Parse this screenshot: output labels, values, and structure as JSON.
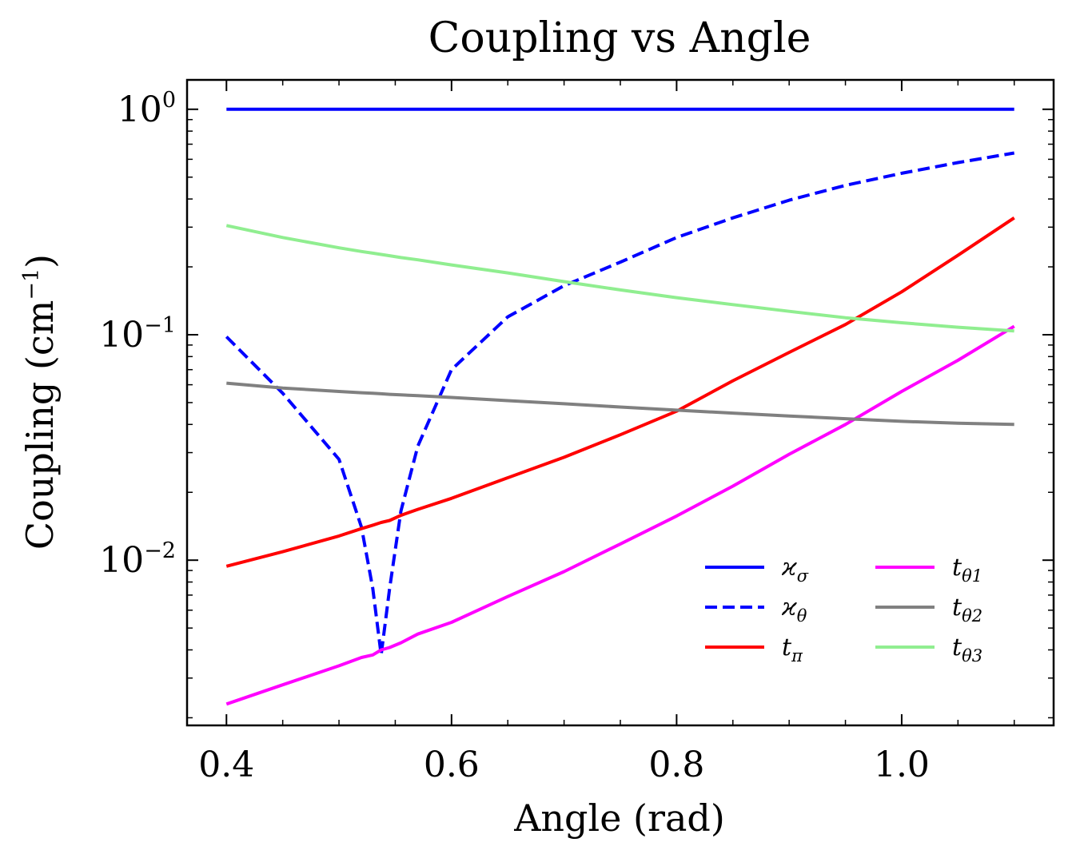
{
  "chart_data": {
    "type": "line",
    "title": "Coupling vs Angle",
    "xlabel": "Angle (rad)",
    "ylabel": "Coupling (cm",
    "ylabel_exponent": "−1",
    "ylabel_close": ")",
    "xlim": [
      0.365,
      1.135
    ],
    "ylim": [
      0.00185,
      1.35
    ],
    "yscale": "log",
    "xticks": [
      0.4,
      0.6,
      0.8,
      1.0
    ],
    "xtick_labels": [
      "0.4",
      "0.6",
      "0.8",
      "1.0"
    ],
    "yticks": [
      1,
      0.1,
      0.01
    ],
    "ytick_labels": [
      {
        "base": "10",
        "exponent": "0"
      },
      {
        "base": "10",
        "exponent": "−1"
      },
      {
        "base": "10",
        "exponent": "−2"
      }
    ],
    "legend_position": "lower-right",
    "legend_columns": 2,
    "x": [
      0.4,
      0.45,
      0.5,
      0.52,
      0.53,
      0.5375,
      0.545,
      0.555,
      0.57,
      0.6,
      0.65,
      0.7,
      0.75,
      0.8,
      0.85,
      0.9,
      0.95,
      1.0,
      1.05,
      1.1
    ],
    "series": [
      {
        "name_base": "ϰ",
        "name_sub": "σ",
        "color": "#0000ff",
        "dash": "solid",
        "values": [
          1.0,
          1.0,
          1.0,
          1.0,
          1.0,
          1.0,
          1.0,
          1.0,
          1.0,
          1.0,
          1.0,
          1.0,
          1.0,
          1.0,
          1.0,
          1.0,
          1.0,
          1.0,
          1.0,
          1.0
        ]
      },
      {
        "name_base": "ϰ",
        "name_sub": "θ",
        "color": "#0000ff",
        "dash": "dashed",
        "values": [
          0.098,
          0.055,
          0.028,
          0.014,
          0.0075,
          0.0038,
          0.0075,
          0.0165,
          0.032,
          0.07,
          0.12,
          0.165,
          0.21,
          0.27,
          0.33,
          0.395,
          0.46,
          0.52,
          0.58,
          0.64
        ]
      },
      {
        "name_base": "t",
        "name_sub": "π",
        "color": "#ff0000",
        "dash": "solid",
        "values": [
          0.0094,
          0.0109,
          0.0128,
          0.0138,
          0.0143,
          0.0147,
          0.015,
          0.0158,
          0.0168,
          0.0188,
          0.0232,
          0.0286,
          0.036,
          0.0458,
          0.0625,
          0.0835,
          0.111,
          0.155,
          0.225,
          0.33
        ]
      },
      {
        "name_base": "t",
        "name_sub": "θ1",
        "color": "#ff00ff",
        "dash": "solid",
        "values": [
          0.0023,
          0.0028,
          0.0034,
          0.0037,
          0.0038,
          0.004,
          0.0041,
          0.0043,
          0.0047,
          0.0053,
          0.0069,
          0.0089,
          0.0118,
          0.0157,
          0.0213,
          0.0295,
          0.04,
          0.056,
          0.077,
          0.109
        ]
      },
      {
        "name_base": "t",
        "name_sub": "θ2",
        "color": "#808080",
        "dash": "solid",
        "values": [
          0.061,
          0.058,
          0.056,
          0.0553,
          0.055,
          0.0547,
          0.0544,
          0.0541,
          0.0537,
          0.0527,
          0.051,
          0.0494,
          0.0478,
          0.0463,
          0.0449,
          0.0436,
          0.0424,
          0.0413,
          0.0405,
          0.04
        ]
      },
      {
        "name_base": "t",
        "name_sub": "θ3",
        "color": "#90ee90",
        "dash": "solid",
        "values": [
          0.305,
          0.27,
          0.243,
          0.234,
          0.23,
          0.227,
          0.224,
          0.22,
          0.215,
          0.204,
          0.188,
          0.172,
          0.158,
          0.146,
          0.136,
          0.127,
          0.119,
          0.113,
          0.108,
          0.104
        ]
      }
    ]
  }
}
